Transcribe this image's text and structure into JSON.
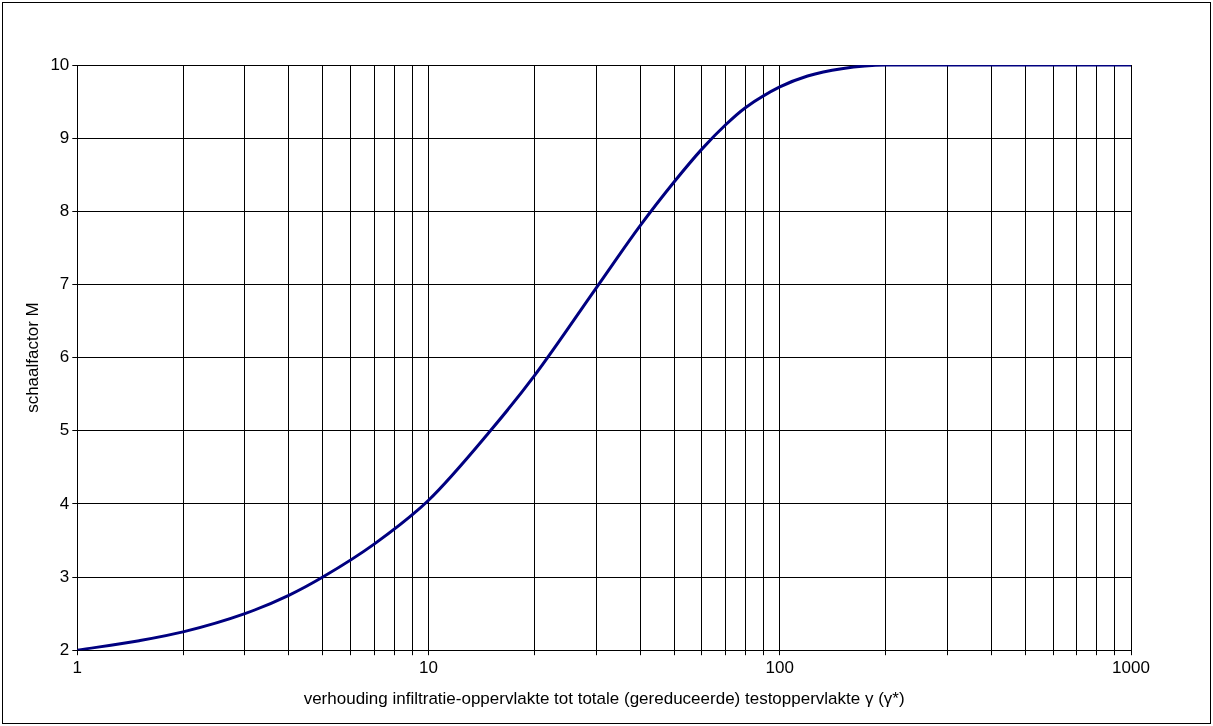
{
  "chart_data": {
    "type": "line",
    "xlabel": "verhouding infiltratie-oppervlakte tot totale (gereduceerde) testoppervlakte γ (γ*)",
    "ylabel": "schaalfactor M",
    "log": "x",
    "xlim": [
      1,
      1000
    ],
    "xticks": [
      1,
      {
        "value": 2,
        "label": null
      },
      {
        "value": 3,
        "label": null
      },
      {
        "value": 4,
        "label": null
      },
      {
        "value": 5,
        "label": null
      },
      {
        "value": 6,
        "label": null
      },
      {
        "value": 7,
        "label": null
      },
      {
        "value": 8,
        "label": null
      },
      {
        "value": 9,
        "label": null
      },
      10,
      {
        "value": 20,
        "label": null
      },
      {
        "value": 30,
        "label": null
      },
      {
        "value": 40,
        "label": null
      },
      {
        "value": 50,
        "label": null
      },
      {
        "value": 60,
        "label": null
      },
      {
        "value": 70,
        "label": null
      },
      {
        "value": 80,
        "label": null
      },
      {
        "value": 90,
        "label": null
      },
      100,
      {
        "value": 200,
        "label": null
      },
      {
        "value": 300,
        "label": null
      },
      {
        "value": 400,
        "label": null
      },
      {
        "value": 500,
        "label": null
      },
      {
        "value": 600,
        "label": null
      },
      {
        "value": 700,
        "label": null
      },
      {
        "value": 800,
        "label": null
      },
      {
        "value": 900,
        "label": null
      },
      1000
    ],
    "ylim": [
      2,
      10
    ],
    "yticks": [
      2,
      3,
      4,
      5,
      6,
      7,
      8,
      9,
      10
    ],
    "grid": true,
    "legend": false,
    "marker": "none",
    "line_style": "solid",
    "series": [
      {
        "color": "#000080",
        "x": [
          1,
          1.5,
          2,
          3,
          4,
          5,
          7,
          10,
          15,
          20,
          30,
          40,
          50,
          60,
          70,
          80,
          100,
          120,
          150,
          200,
          300,
          500,
          1000
        ],
        "values": [
          2.0,
          2.13,
          2.25,
          2.5,
          2.75,
          3.0,
          3.45,
          4.05,
          5.0,
          5.75,
          6.95,
          7.8,
          8.4,
          8.85,
          9.18,
          9.42,
          9.7,
          9.85,
          9.95,
          10,
          10,
          10,
          10
        ]
      }
    ]
  }
}
